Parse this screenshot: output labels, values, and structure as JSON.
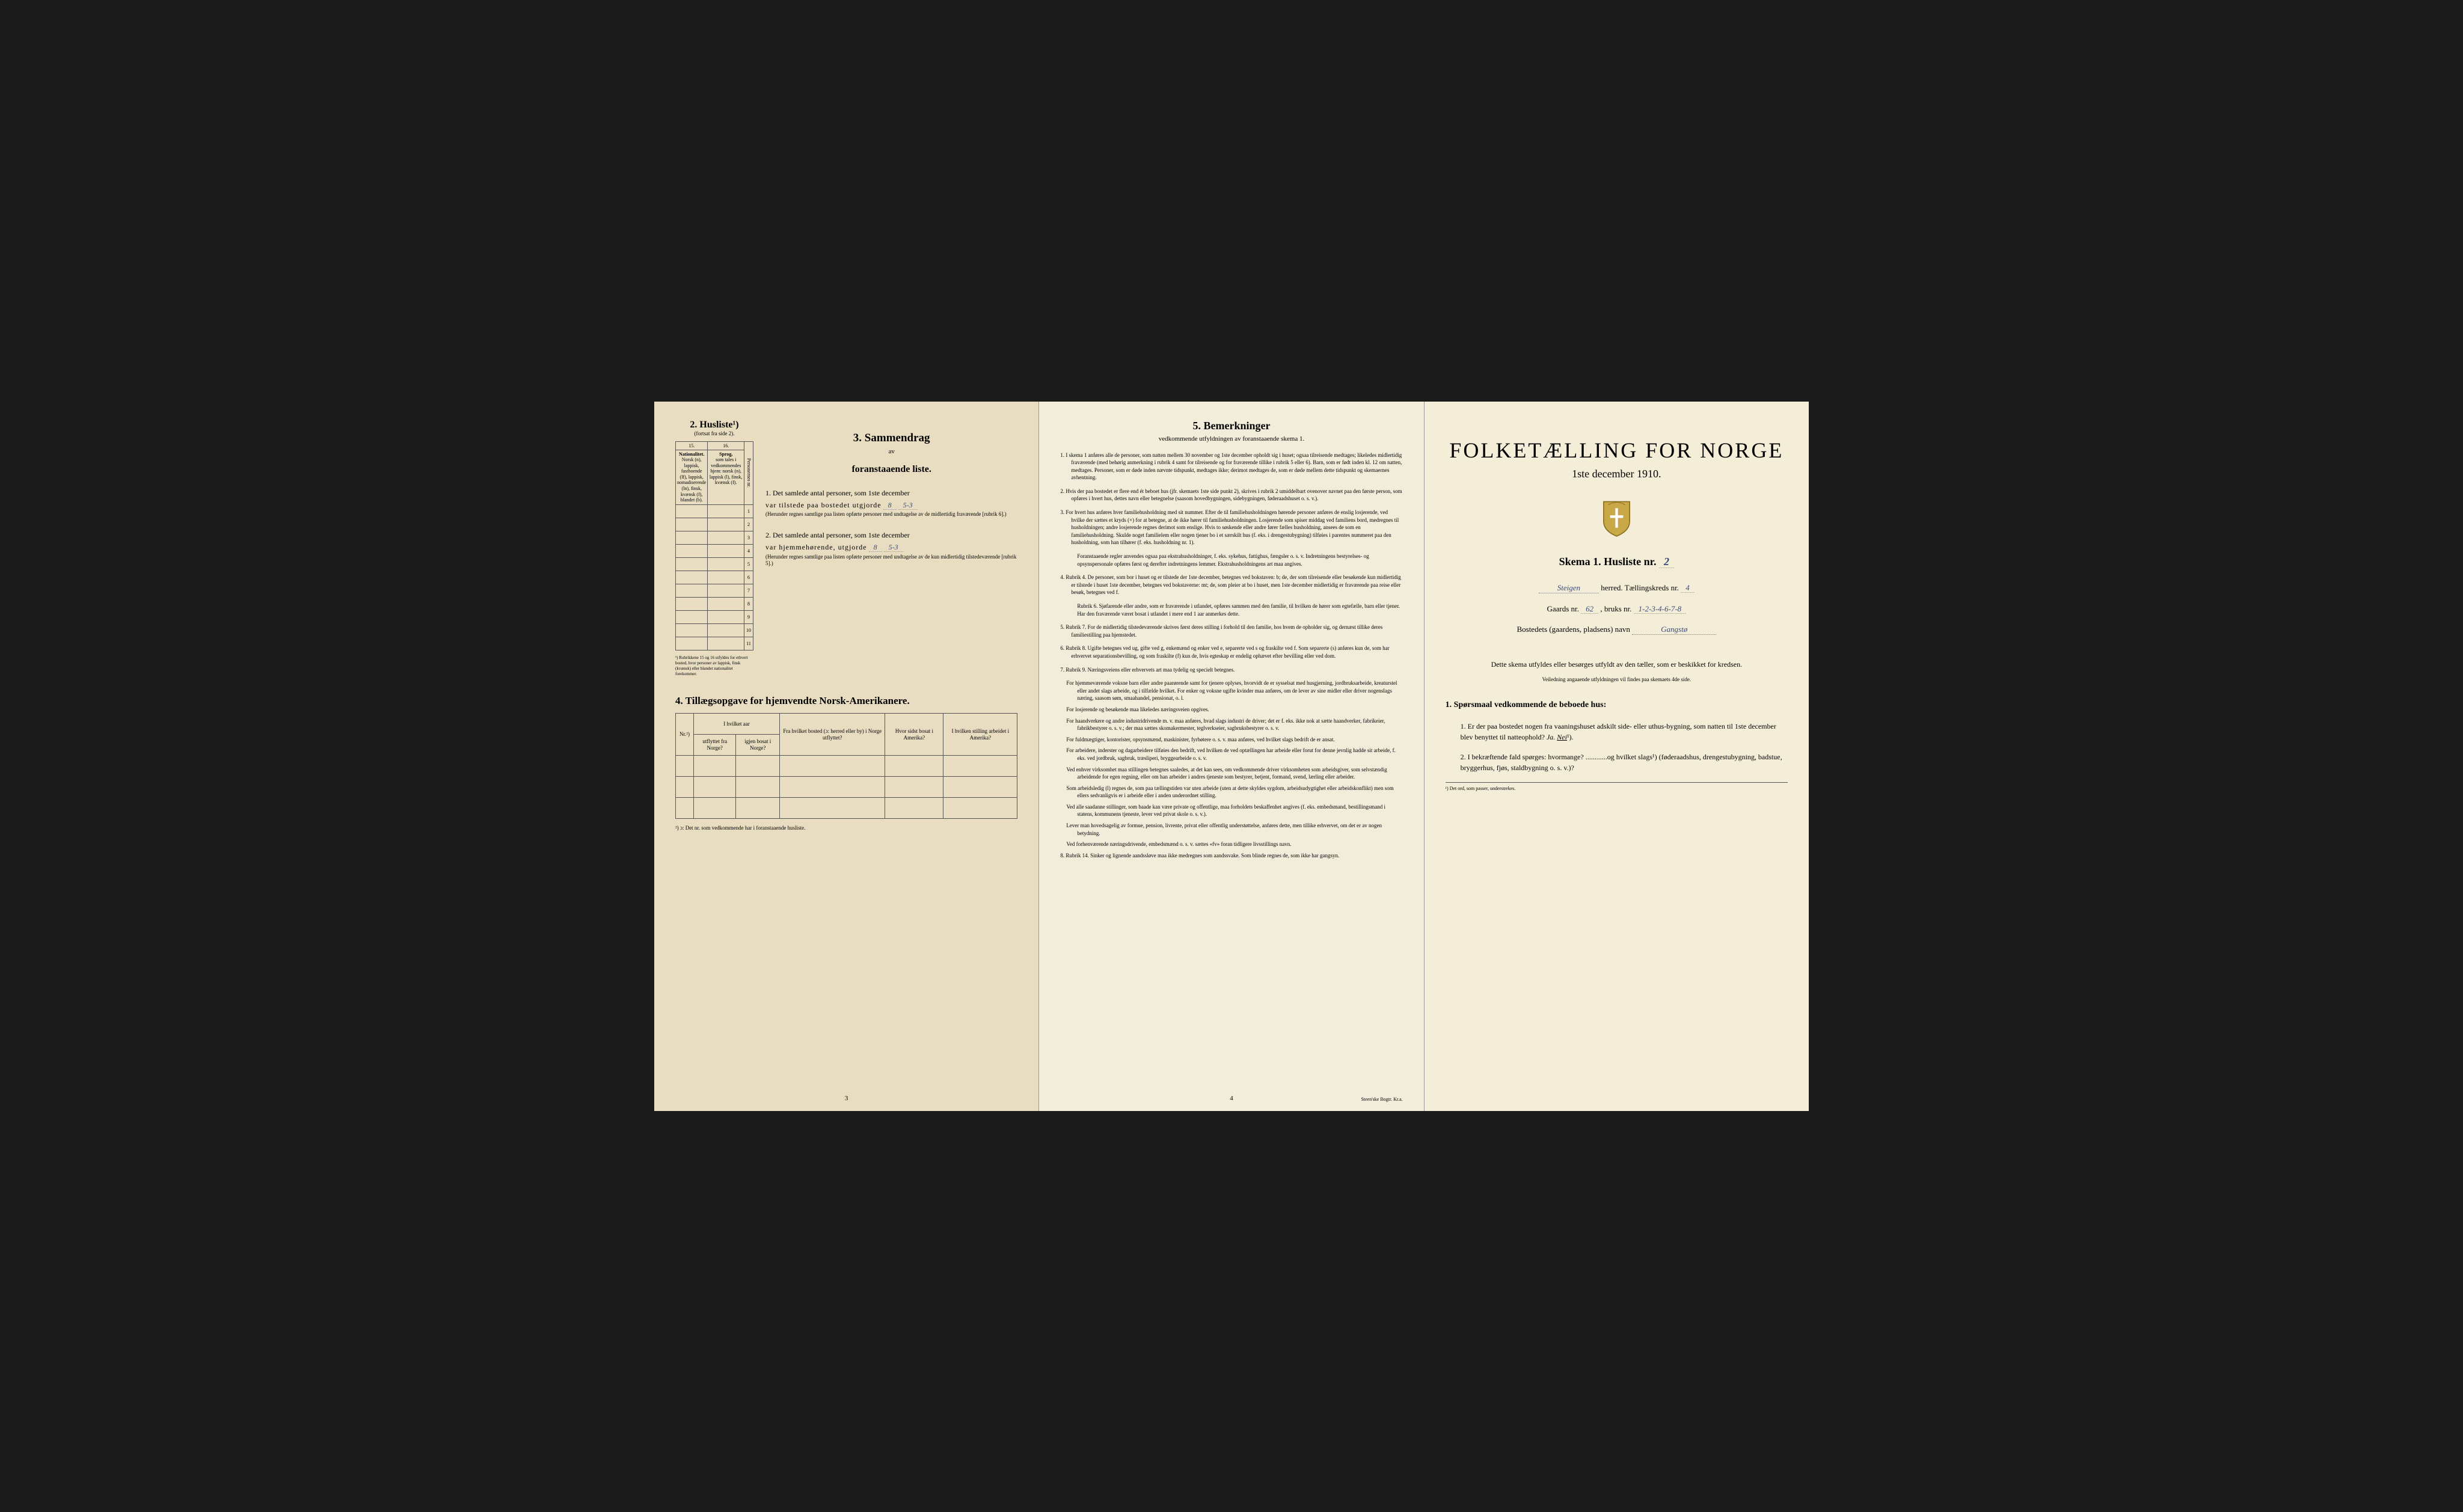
{
  "colors": {
    "background": "#1a1a1a",
    "page1_bg": "#e8ddc0",
    "page2_bg": "#f2ecda",
    "page3_bg": "#f4eed8",
    "text": "#2a2a2a",
    "border": "#555555",
    "handwritten": "#3a4a7a"
  },
  "typography": {
    "body_font": "Georgia, Times New Roman, serif",
    "title_size_pt": 36,
    "section_title_pt": 18,
    "body_pt": 12,
    "small_pt": 9
  },
  "page1": {
    "husliste": {
      "title": "2. Husliste¹)",
      "subtitle": "(fortsat fra side 2).",
      "col15": "15.",
      "col16": "16.",
      "col15_head": "Nationalitet.",
      "col15_text": "Norsk (n), lappisk, fastboende (lf), lappisk, nomadiserende (ln), finsk, kvænsk (f), blandet (b).",
      "col16_head": "Sprog,",
      "col16_text": "som tales i vedkommendes hjem: norsk (n), lappisk (l), finsk, kvænsk (f).",
      "col_side": "Personernes nr.",
      "rows": [
        "1",
        "2",
        "3",
        "4",
        "5",
        "6",
        "7",
        "8",
        "9",
        "10",
        "11"
      ],
      "footnote": "¹) Rubrikkene 15 og 16 utfyldes for ethvert bosted, hvor personer av lappisk, finsk (kvænsk) eller blandet nationalitet forekommer."
    },
    "sammendrag": {
      "title": "3. Sammendrag",
      "subtitle_av": "av",
      "subtitle": "foranstaaende liste.",
      "item1_label": "1. Det samlede antal personer, som 1ste december",
      "item1_text": "var tilstede paa bostedet utgjorde",
      "item1_value": "8",
      "item1_note": "5-3",
      "item1_sub": "(Herunder regnes samtlige paa listen opførte personer med undtagelse av de midlertidig fraværende [rubrik 6].)",
      "item2_label": "2. Det samlede antal personer, som 1ste december",
      "item2_text": "var hjemmehørende, utgjorde",
      "item2_value": "8",
      "item2_note": "5-3",
      "item2_sub": "(Herunder regnes samtlige paa listen opførte personer med undtagelse av de kun midlertidig tilstedeværende [rubrik 5].)"
    },
    "tillaeg": {
      "title": "4. Tillægsopgave for hjemvendte Norsk-Amerikanere.",
      "headers": [
        "Nr.²)",
        "I hvilket aar",
        "Fra hvilket bosted (ɔ: herred eller by) i Norge utflyttet?",
        "Hvor sidst bosat i Amerika?",
        "I hvilken stilling arbeidet i Amerika?"
      ],
      "subheaders": [
        "",
        "utflyttet fra Norge?",
        "igjen bosat i Norge?",
        "",
        "",
        ""
      ],
      "footnote": "²) ɔ: Det nr. som vedkommende har i foranstaaende husliste."
    },
    "page_num": "3"
  },
  "page2": {
    "title": "5. Bemerkninger",
    "subtitle": "vedkommende utfyldningen av foranstaaende skema 1.",
    "items": [
      {
        "num": "1.",
        "text": "I skema 1 anføres alle de personer, som natten mellem 30 november og 1ste december opholdt sig i huset; ogsaa tilreisende medtages; likeledes midlertidig fraværende (med behørig anmerkning i rubrik 4 samt for tilreisende og for fraværende tillike i rubrik 5 eller 6). Barn, som er født inden kl. 12 om natten, medtages. Personer, som er døde inden nævnte tidspunkt, medtages ikke; derimot medtages de, som er døde mellem dette tidspunkt og skemaernes avhentning."
      },
      {
        "num": "2.",
        "text": "Hvis der paa bostedet er flere end ét beboet hus (jfr. skemaets 1ste side punkt 2), skrives i rubrik 2 umiddelbart ovenover navnet paa den første person, som opføres i hvert hus, dettes navn eller betegnelse (saasom hovedbygningen, sidebygningen, føderaadshuset o. s. v.)."
      },
      {
        "num": "3.",
        "text": "For hvert hus anføres hver familiehusholdning med sit nummer. Efter de til familiehusholdningen hørende personer anføres de enslig losjerende, ved hvilke der sættes et kryds (×) for at betegne, at de ikke hører til familiehusholdningen. Losjerende som spiser middag ved familiens bord, medregnes til husholdningen; andre losjerende regnes derimot som enslige. Hvis to søskende eller andre fører fælles husholdning, ansees de som en familiehusholdning. Skulde noget familielem eller nogen tjener bo i et særskilt hus (f. eks. i drengestubygning) tilføies i parentes nummeret paa den husholdning, som han tilhører (f. eks. husholdning nr. 1).",
        "sub": "Foranstaaende regler anvendes ogsaa paa ekstrahusholdninger, f. eks. sykehus, fattighus, fængsler o. s. v. Indretningens bestyrelses- og opsynspersonale opføres først og derefter indretningens lemmer. Ekstrahusholdningens art maa angives."
      },
      {
        "num": "4.",
        "text": "Rubrik 4. De personer, som bor i huset og er tilstede der 1ste december, betegnes ved bokstaven: b; de, der som tilreisende eller besøkende kun midlertidig er tilstede i huset 1ste december, betegnes ved bokstaverne: mt; de, som pleier at bo i huset, men 1ste december midlertidig er fraværende paa reise eller besøk, betegnes ved f.",
        "sub": "Rubrik 6. Sjøfarende eller andre, som er fraværende i utlandet, opføres sammen med den familie, til hvilken de hører som egtefælle, barn eller tjener.\nHar den fraværende været bosat i utlandet i mere end 1 aar anmerkes dette."
      },
      {
        "num": "5.",
        "text": "Rubrik 7. For de midlertidig tilstedeværende skrives først deres stilling i forhold til den familie, hos hvem de opholder sig, og dernæst tillike deres familiestilling paa hjemstedet."
      },
      {
        "num": "6.",
        "text": "Rubrik 8. Ugifte betegnes ved ug, gifte ved g, enkemænd og enker ved e, separerte ved s og fraskilte ved f. Som separerte (s) anføres kun de, som har erhvervet separationsbevilling, og som fraskilte (f) kun de, hvis egteskap er endelig ophævet efter bevilling eller ved dom."
      },
      {
        "num": "7.",
        "text": "Rubrik 9. Næringsveiens eller erhvervets art maa tydelig og specielt betegnes.",
        "subs": [
          "For hjemmeværende voksne barn eller andre paarørende samt for tjenere oplyses, hvorvidt de er sysselsat med husgjerning, jordbruksarbeide, kreaturstel eller andet slags arbeide, og i tilfælde hvilket. For enker og voksne ugifte kvinder maa anføres, om de lever av sine midler eller driver nogenslags næring, saasom søm, smaahandel, pensionat, o. l.",
          "For losjerende og besøkende maa likeledes næringsveien opgives.",
          "For haandverkere og andre industridrivende m. v. maa anføres, hvad slags industri de driver; det er f. eks. ikke nok at sætte haandverker, fabrikeier, fabrikbestyrer o. s. v.; der maa sættes skomakermester, teglverkseier, sagbruksbestyrer o. s. v.",
          "For fuldmægtiger, kontorister, opsynsmænd, maskinister, fyrbøtere o. s. v. maa anføres, ved hvilket slags bedrift de er ansat.",
          "For arbeidere, inderster og dagarbeidere tilføies den bedrift, ved hvilken de ved optællingen har arbeide eller forut for denne jevnlig hadde sit arbeide, f. eks. ved jordbruk, sagbruk, træsliperi, bryggearbeide o. s. v.",
          "Ved enhver virksomhet maa stillingen betegnes saaledes, at det kan sees, om vedkommende driver virksomheten som arbeidsgiver, som selvstændig arbeidende for egen regning, eller om han arbeider i andres tjeneste som bestyrer, betjent, formand, svend, lærling eller arbeider.",
          "Som arbeidsledig (l) regnes de, som paa tællingstiden var uten arbeide (uten at dette skyldes sygdom, arbeidsudygtighet eller arbeidskonflikt) men som ellers sedvanligvis er i arbeide eller i anden underordnet stilling.",
          "Ved alle saadanne stillinger, som baade kan være private og offentlige, maa forholdets beskaffenhet angives (f. eks. embedsmand, bestillingsmand i statens, kommunens tjeneste, lever ved privat skole o. s. v.).",
          "Lever man hovedsagelig av formue, pension, livrente, privat eller offentlig understøttelse, anføres dette, men tillike erhvervet, om det er av nogen betydning.",
          "Ved forhenværende næringsdrivende, embedsmænd o. s. v. sættes «fv» foran tidligere livsstillings navn."
        ]
      },
      {
        "num": "8.",
        "text": "Rubrik 14. Sinker og lignende aandssløve maa ikke medregnes som aandssvake.\nSom blinde regnes de, som ikke har gangsyn."
      }
    ],
    "page_num": "4",
    "footer": "Steen'ske Bogtr. Kr.a."
  },
  "page3": {
    "title": "FOLKETÆLLING FOR NORGE",
    "subtitle": "1ste december 1910.",
    "skema": "Skema 1.  Husliste nr.",
    "skema_value": "2",
    "herred_prefix": "",
    "herred_value": "Steigen",
    "herred_suffix": "herred.  Tællingskreds nr.",
    "kreds_value": "4",
    "gaards_label": "Gaards nr.",
    "gaards_value": "62",
    "bruks_label": ", bruks nr.",
    "bruks_value": "1-2-3-4-6-7-8",
    "bosted_label": "Bostedets (gaardens, pladsens) navn",
    "bosted_value": "Gangstø",
    "intro": "Dette skema utfyldes eller besørges utfyldt av den tæller, som er beskikket for kredsen.",
    "intro_sub": "Veiledning angaaende utfyldningen vil findes paa skemaets 4de side.",
    "sporsmaal_title": "1. Spørsmaal vedkommende de beboede hus:",
    "q1": "1. Er der paa bostedet nogen fra vaaningshuset adskilt side- eller uthus-bygning, som natten til 1ste december blev benyttet til natteophold?  Ja.  Nei¹).",
    "q1_answer": "Nei",
    "q2": "2. I bekræftende fald spørges: hvormange? ............og hvilket slags¹) (føderaadshus, drengestubygning, badstue, bryggerhus, fjøs, staldbygning o. s. v.)?",
    "footnote": "¹) Det ord, som passer, understrekes."
  }
}
